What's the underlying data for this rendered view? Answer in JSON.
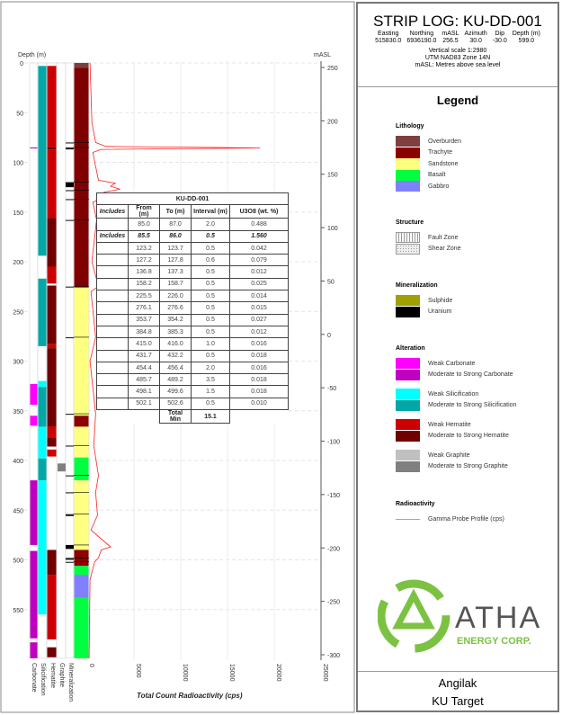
{
  "header": {
    "title": "STRIP LOG: KU-DD-001",
    "fields": [
      {
        "label": "Easting",
        "value": "515830.0"
      },
      {
        "label": "Northing",
        "value": "6936190.0"
      },
      {
        "label": "mASL",
        "value": "256.5"
      },
      {
        "label": "Azimuth",
        "value": "30.0"
      },
      {
        "label": "Dip",
        "value": "-30.0"
      },
      {
        "label": "Depth (m)",
        "value": "599.0"
      }
    ],
    "scale": "Vertical scale 1:2980",
    "datum": "UTM NAD83 Zone 14N",
    "masl_note": "mASL: Metres above sea level"
  },
  "legend": {
    "title": "Legend",
    "lithology": {
      "title": "Lithology",
      "items": [
        {
          "label": "Overburden",
          "color": "#7f3f3f"
        },
        {
          "label": "Trachyte",
          "color": "#8b0000"
        },
        {
          "label": "Sandstone",
          "color": "#ffff80"
        },
        {
          "label": "Basalt",
          "color": "#00ff40"
        },
        {
          "label": "Gabbro",
          "color": "#8080ff"
        }
      ]
    },
    "structure": {
      "title": "Structure",
      "items": [
        {
          "label": "Fault Zone"
        },
        {
          "label": "Shear Zone"
        }
      ]
    },
    "mineralization": {
      "title": "Mineralization",
      "items": [
        {
          "label": "Sulphide",
          "color": "#a0a000"
        },
        {
          "label": "Uranium",
          "color": "#000000"
        }
      ]
    },
    "alteration": {
      "title": "Alteration",
      "items": [
        {
          "label": "Weak Carbonate",
          "color": "#ff00ff"
        },
        {
          "label": "Moderate to Strong Carbonate",
          "color": "#c000c0"
        },
        {
          "label": "Weak Silicification",
          "color": "#00ffff"
        },
        {
          "label": "Moderate to Strong Silicification",
          "color": "#00a8a8"
        },
        {
          "label": "Weak Hematite",
          "color": "#cc0000"
        },
        {
          "label": "Moderate to Strong Hematite",
          "color": "#700000"
        },
        {
          "label": "Weak Graphite",
          "color": "#c0c0c0"
        },
        {
          "label": "Moderate to Strong Graphite",
          "color": "#808080"
        }
      ]
    },
    "radioactivity": {
      "title": "Radioactivity",
      "items": [
        {
          "label": "Gamma Probe Profile (cps)",
          "color": "#ff8080"
        }
      ]
    }
  },
  "logo": {
    "text": "ATHA",
    "sub": "ENERGY CORP."
  },
  "footer": {
    "project": "Angilak",
    "target": "KU Target"
  },
  "table": {
    "title": "KU-DD-001",
    "columns": [
      "Includes",
      "From (m)",
      "To (m)",
      "Interval (m)",
      "U3O8 (wt. %)"
    ],
    "rows": [
      [
        "",
        "85.0",
        "87.0",
        "2.0",
        "0.488"
      ],
      [
        "Includes",
        "85.5",
        "86.0",
        "0.5",
        "1.560"
      ],
      [
        "",
        "123.2",
        "123.7",
        "0.5",
        "0.042"
      ],
      [
        "",
        "127.2",
        "127.8",
        "0.6",
        "0.079"
      ],
      [
        "",
        "136.8",
        "137.3",
        "0.5",
        "0.012"
      ],
      [
        "",
        "158.2",
        "158.7",
        "0.5",
        "0.025"
      ],
      [
        "",
        "225.5",
        "226.0",
        "0.5",
        "0.014"
      ],
      [
        "",
        "276.1",
        "276.6",
        "0.5",
        "0.015"
      ],
      [
        "",
        "353.7",
        "354.2",
        "0.5",
        "0.027"
      ],
      [
        "",
        "384.8",
        "385.3",
        "0.5",
        "0.012"
      ],
      [
        "",
        "415.0",
        "416.0",
        "1.0",
        "0.016"
      ],
      [
        "",
        "431.7",
        "432.2",
        "0.5",
        "0.018"
      ],
      [
        "",
        "454.4",
        "456.4",
        "2.0",
        "0.016"
      ],
      [
        "",
        "485.7",
        "489.2",
        "3.5",
        "0.018"
      ],
      [
        "",
        "498.1",
        "499.6",
        "1.5",
        "0.018"
      ],
      [
        "",
        "502.1",
        "502.6",
        "0.5",
        "0.010"
      ]
    ],
    "total_label": "Total Min",
    "total_value": "15.1"
  },
  "chart_data": {
    "type": "strip-log",
    "depth_axis": {
      "label": "Depth (m)",
      "range": [
        0,
        599
      ],
      "ticks": [
        0,
        50,
        100,
        150,
        200,
        250,
        300,
        350,
        400,
        450,
        500,
        550
      ]
    },
    "masl_axis": {
      "label": "mASL",
      "range": [
        -300,
        250
      ],
      "ticks": [
        250,
        200,
        150,
        100,
        50,
        0,
        -50,
        -100,
        -150,
        -200,
        -250,
        -300
      ]
    },
    "x_axis": {
      "label": "Total Count Radioactivity (cps)",
      "range": [
        0,
        25000
      ],
      "ticks": [
        0,
        5000,
        10000,
        15000,
        20000,
        25000
      ]
    },
    "track_labels": [
      "Carbonate",
      "Silicification",
      "Hematite",
      "Graphite",
      "Mineralization"
    ],
    "carbonate": [
      [
        85,
        86,
        "#c000c0"
      ],
      [
        323,
        344,
        "#ff00ff"
      ],
      [
        355,
        365,
        "#ff00ff"
      ],
      [
        420,
        485,
        "#c000c0"
      ],
      [
        491,
        579,
        "#c000c0"
      ],
      [
        583,
        599,
        "#c000c0"
      ]
    ],
    "silicification": [
      [
        3,
        194,
        "#00a8a8"
      ],
      [
        217,
        285,
        "#00a8a8"
      ],
      [
        320,
        326,
        "#00ffff"
      ],
      [
        326,
        366,
        "#00a8a8"
      ],
      [
        366,
        398,
        "#00ffff"
      ],
      [
        398,
        420,
        "#00a8a8"
      ],
      [
        420,
        555,
        "#00ffff"
      ]
    ],
    "hematite": [
      [
        3,
        85,
        "#cc0000"
      ],
      [
        85,
        87,
        "#700000"
      ],
      [
        87,
        156,
        "#cc0000"
      ],
      [
        156,
        205,
        "#700000"
      ],
      [
        205,
        222,
        "#cc0000"
      ],
      [
        224,
        283,
        "#700000"
      ],
      [
        283,
        287,
        "#cc0000"
      ],
      [
        287,
        366,
        "#700000"
      ],
      [
        366,
        377,
        "#cc0000"
      ],
      [
        377,
        386,
        "#700000"
      ],
      [
        389,
        396,
        "#cc0000"
      ],
      [
        490,
        515,
        "#700000"
      ],
      [
        515,
        580,
        "#cc0000"
      ],
      [
        588,
        598,
        "#700000"
      ]
    ],
    "graphite": [
      [
        403,
        411,
        "#808080"
      ]
    ],
    "mineralization": [
      [
        80,
        81
      ],
      [
        85,
        87
      ],
      [
        120,
        125
      ],
      [
        128,
        129
      ],
      [
        137,
        138
      ],
      [
        158,
        159
      ],
      [
        225,
        226
      ],
      [
        276,
        277
      ],
      [
        353,
        354
      ],
      [
        385,
        386
      ],
      [
        415,
        416
      ],
      [
        432,
        433
      ],
      [
        454,
        456
      ],
      [
        485,
        489
      ],
      [
        498,
        500
      ],
      [
        502,
        503
      ]
    ],
    "lithology": [
      [
        0,
        5,
        "#7f3f3f"
      ],
      [
        5,
        226,
        "#8b0000"
      ],
      [
        226,
        355,
        "#ffff80"
      ],
      [
        355,
        366,
        "#8b0000"
      ],
      [
        366,
        397,
        "#ffff80"
      ],
      [
        397,
        420,
        "#00ff40"
      ],
      [
        420,
        490,
        "#ffff80"
      ],
      [
        490,
        506,
        "#8b0000"
      ],
      [
        506,
        515,
        "#00ff40"
      ],
      [
        515,
        538,
        "#8080ff"
      ],
      [
        538,
        599,
        "#00ff40"
      ]
    ],
    "gamma": [
      [
        0,
        300
      ],
      [
        60,
        500
      ],
      [
        80,
        900
      ],
      [
        84,
        2000
      ],
      [
        85.5,
        18500
      ],
      [
        87,
        1500
      ],
      [
        90,
        600
      ],
      [
        118,
        1200
      ],
      [
        121,
        3000
      ],
      [
        124,
        2500
      ],
      [
        127,
        3500
      ],
      [
        130,
        1800
      ],
      [
        137,
        1400
      ],
      [
        140,
        600
      ],
      [
        158,
        1000
      ],
      [
        200,
        500
      ],
      [
        225,
        1200
      ],
      [
        230,
        400
      ],
      [
        276,
        900
      ],
      [
        300,
        300
      ],
      [
        353,
        900
      ],
      [
        385,
        700
      ],
      [
        415,
        1200
      ],
      [
        432,
        900
      ],
      [
        455,
        1100
      ],
      [
        470,
        400
      ],
      [
        487,
        2500
      ],
      [
        490,
        1500
      ],
      [
        498,
        1200
      ],
      [
        502,
        800
      ],
      [
        520,
        300
      ],
      [
        599,
        200
      ]
    ]
  }
}
